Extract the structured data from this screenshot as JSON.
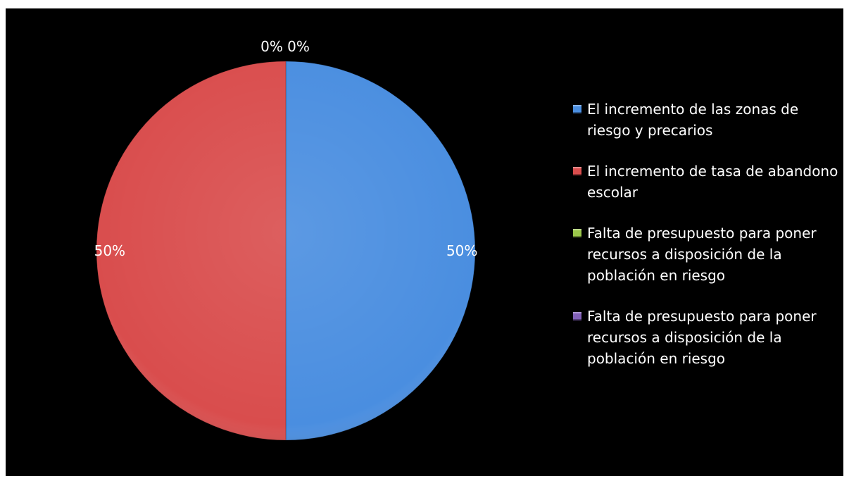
{
  "chart_data": {
    "type": "pie",
    "title": "",
    "slices": [
      {
        "label": "El incremento de las zonas de riesgo y precarios",
        "value": 50,
        "value_label": "50%",
        "color": "#4a8ee0"
      },
      {
        "label": "El incremento de tasa de abandono escolar",
        "value": 50,
        "value_label": "50%",
        "color": "#d94d4d"
      },
      {
        "label": "Falta de presupuesto para poner recursos a disposición de la población en riesgo",
        "value": 0,
        "value_label": "0%",
        "color": "#9ac64a"
      },
      {
        "label": "Falta de presupuesto para poner recursos a disposición de la población en riesgo",
        "value": 0,
        "value_label": "0%",
        "color": "#8160b8"
      }
    ],
    "legend_position": "right",
    "background": "#000000"
  }
}
